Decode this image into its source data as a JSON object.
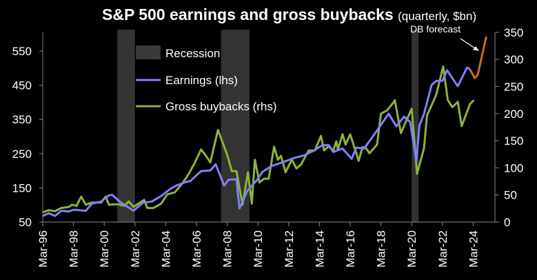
{
  "chart_data": {
    "type": "line",
    "title": "S&P 500 earnings and gross buybacks",
    "subtitle": "(quarterly, $bn)",
    "x_unit": "decimal year (Mar of year = year.0)",
    "x_tick_labels": [
      "Mar-96",
      "Mar-98",
      "Mar-00",
      "Mar-02",
      "Mar-04",
      "Mar-06",
      "Mar-08",
      "Mar-10",
      "Mar-12",
      "Mar-14",
      "Mar-16",
      "Mar-18",
      "Mar-20",
      "Mar-22",
      "Mar-24"
    ],
    "xlim": [
      1996,
      2025.2
    ],
    "y_left": {
      "label": "lhs",
      "ylim": [
        50,
        600
      ],
      "ticks": [
        50,
        150,
        250,
        350,
        450,
        550
      ]
    },
    "y_right": {
      "label": "rhs",
      "ylim": [
        0,
        350
      ],
      "ticks": [
        0,
        50,
        100,
        150,
        200,
        250,
        300,
        350
      ]
    },
    "recessions": [
      {
        "name": "2001",
        "start": 2000.85,
        "end": 2002.0
      },
      {
        "name": "2008",
        "start": 2007.6,
        "end": 2009.45
      },
      {
        "name": "2020",
        "start": 2020.0,
        "end": 2020.45
      }
    ],
    "legend": {
      "placement": "top-left",
      "recession_label": "Recession"
    },
    "annotation": "DB forecast",
    "series": [
      {
        "name": "Earnings (lhs)",
        "axis": "left",
        "color": "#8080ff",
        "x": [
          1996.0,
          1996.4,
          1996.8,
          1997.2,
          1997.7,
          1998.0,
          1998.8,
          1999.2,
          1999.8,
          2000.25,
          2000.5,
          2001.0,
          2001.9,
          2002.5,
          2003.1,
          2003.7,
          2004.3,
          2004.7,
          2005.3,
          2005.6,
          2006.3,
          2006.9,
          2007.25,
          2007.8,
          2008.1,
          2008.6,
          2008.8,
          2009.3,
          2009.9,
          2010.3,
          2010.9,
          2011.8,
          2012.4,
          2013.0,
          2013.6,
          2014.2,
          2014.6,
          2014.9,
          2015.5,
          2016.1,
          2016.4,
          2016.9,
          2017.5,
          2018.5,
          2019.0,
          2019.5,
          2019.9,
          2020.3,
          2020.5,
          2020.8,
          2021.3,
          2021.6,
          2022.0,
          2022.3,
          2023.0,
          2023.6,
          2023.8
        ],
        "values": [
          68,
          76,
          68,
          83,
          81,
          86,
          83,
          104,
          110,
          127,
          130,
          110,
          83,
          106,
          110,
          126,
          147,
          157,
          167,
          170,
          199,
          201,
          219,
          157,
          174,
          175,
          90,
          141,
          171,
          197,
          214,
          228,
          238,
          245,
          258,
          275,
          275,
          255,
          265,
          235,
          268,
          265,
          302,
          367,
          330,
          358,
          343,
          229,
          332,
          366,
          451,
          463,
          463,
          494,
          447,
          502,
          496
        ]
      },
      {
        "name": "Gross buybacks (rhs)",
        "axis": "right",
        "color": "#8db33a",
        "x": [
          1996.0,
          1996.4,
          1996.8,
          1997.2,
          1997.7,
          1997.9,
          1998.2,
          1998.5,
          1998.8,
          1999.2,
          1999.8,
          2000.1,
          2000.3,
          2000.9,
          2001.3,
          2001.6,
          2001.9,
          2002.6,
          2002.8,
          2003.2,
          2003.7,
          2004.1,
          2004.6,
          2005.1,
          2005.5,
          2005.9,
          2006.3,
          2006.6,
          2006.9,
          2007.4,
          2008.0,
          2008.3,
          2008.6,
          2009.0,
          2009.35,
          2009.6,
          2009.8,
          2010.1,
          2010.4,
          2010.7,
          2011.05,
          2011.3,
          2011.5,
          2011.8,
          2012.2,
          2012.5,
          2012.8,
          2013.3,
          2013.7,
          2014.1,
          2014.3,
          2014.6,
          2014.9,
          2015.1,
          2015.2,
          2015.5,
          2015.7,
          2016.0,
          2016.55,
          2016.8,
          2017.0,
          2017.25,
          2017.75,
          2018.0,
          2018.4,
          2018.8,
          2018.9,
          2019.3,
          2019.65,
          2020.0,
          2020.35,
          2020.8,
          2021.0,
          2021.6,
          2022.05,
          2022.35,
          2022.65,
          2023.0,
          2023.25,
          2023.8,
          2024.05
        ],
        "values": [
          18,
          22,
          20,
          26,
          28,
          32,
          30,
          47,
          32,
          36,
          36,
          47,
          32,
          33,
          30,
          38,
          28,
          41,
          26,
          26,
          34,
          51,
          55,
          72,
          89,
          110,
          134,
          123,
          110,
          170,
          124,
          94,
          94,
          32,
          92,
          34,
          115,
          73,
          80,
          80,
          139,
          115,
          122,
          92,
          115,
          99,
          106,
          132,
          132,
          159,
          132,
          140,
          132,
          149,
          134,
          162,
          143,
          162,
          113,
          138,
          138,
          127,
          143,
          200,
          206,
          220,
          225,
          164,
          187,
          209,
          89,
          136,
          197,
          235,
          287,
          225,
          212,
          222,
          177,
          218,
          225
        ]
      },
      {
        "name": "DB forecast",
        "axis": "left",
        "color": "#d2691e",
        "x": [
          2023.8,
          2024.1,
          2024.3,
          2024.85
        ],
        "values": [
          496,
          471,
          481,
          592
        ]
      }
    ]
  }
}
